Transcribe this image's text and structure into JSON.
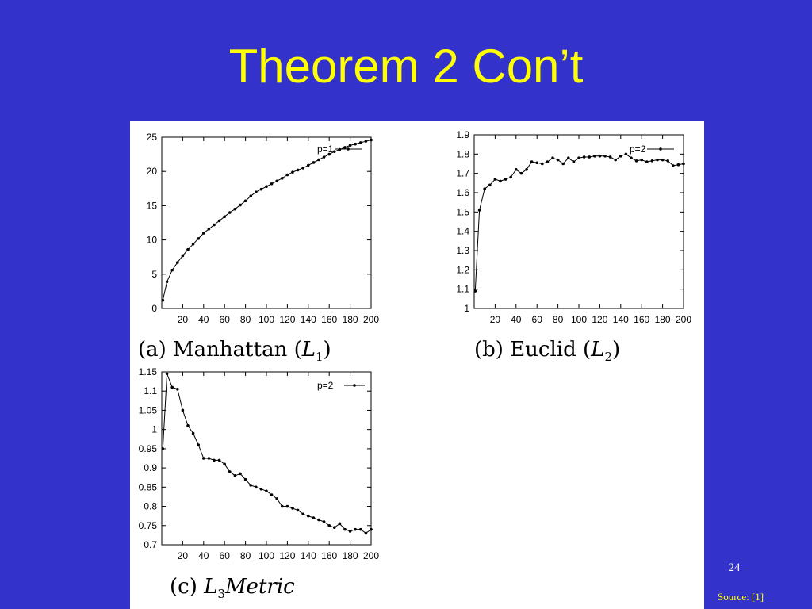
{
  "slide": {
    "title": "Theorem 2 Con’t",
    "page_number": "24",
    "source": "Source: [1]",
    "background": "#3333cc",
    "title_color": "#ffff00"
  },
  "chart_data": [
    {
      "type": "line",
      "caption": {
        "prefix": "(a) Manhattan (",
        "var": "L",
        "sub": "1",
        "suffix": ")"
      },
      "legend_label": "p=1",
      "legend_position": "top-right",
      "grid": false,
      "xlim": [
        0,
        200
      ],
      "ylim": [
        0,
        25
      ],
      "xticks": [
        20,
        40,
        60,
        80,
        100,
        120,
        140,
        160,
        180,
        200
      ],
      "yticks": [
        0,
        5,
        10,
        15,
        20,
        25
      ],
      "ytick_labels": [
        "0",
        "5",
        "10",
        "15",
        "20",
        "25"
      ],
      "series": [
        {
          "x": [
            1,
            5,
            10,
            15,
            20,
            25,
            30,
            35,
            40,
            45,
            50,
            55,
            60,
            65,
            70,
            75,
            80,
            85,
            90,
            95,
            100,
            105,
            110,
            115,
            120,
            125,
            130,
            135,
            140,
            145,
            150,
            155,
            160,
            165,
            170,
            175,
            180,
            185,
            190,
            195,
            200
          ],
          "y": [
            1.2,
            3.9,
            5.6,
            6.7,
            7.7,
            8.6,
            9.4,
            10.2,
            11.0,
            11.6,
            12.2,
            12.8,
            13.4,
            14.0,
            14.5,
            15.1,
            15.7,
            16.4,
            17.0,
            17.4,
            17.8,
            18.2,
            18.6,
            19.0,
            19.5,
            19.9,
            20.2,
            20.5,
            20.9,
            21.3,
            21.7,
            22.1,
            22.5,
            22.9,
            23.2,
            23.5,
            23.8,
            24.0,
            24.2,
            24.4,
            24.6
          ]
        }
      ]
    },
    {
      "type": "line",
      "caption": {
        "prefix": "(b) Euclid (",
        "var": "L",
        "sub": "2",
        "suffix": ")"
      },
      "legend_label": "p=2",
      "legend_position": "top-right",
      "grid": false,
      "xlim": [
        0,
        200
      ],
      "ylim": [
        1,
        1.9
      ],
      "xticks": [
        20,
        40,
        60,
        80,
        100,
        120,
        140,
        160,
        180,
        200
      ],
      "yticks": [
        1,
        1.1,
        1.2,
        1.3,
        1.4,
        1.5,
        1.6,
        1.7,
        1.8,
        1.9
      ],
      "ytick_labels": [
        "1",
        "1.1",
        "1.2",
        "1.3",
        "1.4",
        "1.5",
        "1.6",
        "1.7",
        "1.8",
        "1.9"
      ],
      "series": [
        {
          "x": [
            1,
            5,
            10,
            15,
            20,
            25,
            30,
            35,
            40,
            45,
            50,
            55,
            60,
            65,
            70,
            75,
            80,
            85,
            90,
            95,
            100,
            105,
            110,
            115,
            120,
            125,
            130,
            135,
            140,
            145,
            150,
            155,
            160,
            165,
            170,
            175,
            180,
            185,
            190,
            195,
            200
          ],
          "y": [
            1.09,
            1.51,
            1.62,
            1.64,
            1.67,
            1.66,
            1.67,
            1.68,
            1.72,
            1.7,
            1.72,
            1.76,
            1.755,
            1.75,
            1.76,
            1.78,
            1.77,
            1.75,
            1.78,
            1.76,
            1.78,
            1.785,
            1.785,
            1.79,
            1.79,
            1.79,
            1.785,
            1.77,
            1.79,
            1.8,
            1.78,
            1.765,
            1.77,
            1.76,
            1.765,
            1.77,
            1.77,
            1.765,
            1.74,
            1.745,
            1.75
          ]
        }
      ]
    },
    {
      "type": "line",
      "caption": {
        "prefix": "(c) ",
        "var": "L",
        "sub": "3",
        "suffix": "Metric"
      },
      "legend_label": "p=2",
      "legend_position": "top-right",
      "grid": false,
      "xlim": [
        0,
        200
      ],
      "ylim": [
        0.7,
        1.15
      ],
      "xticks": [
        20,
        40,
        60,
        80,
        100,
        120,
        140,
        160,
        180,
        200
      ],
      "yticks": [
        0.7,
        0.75,
        0.8,
        0.85,
        0.9,
        0.95,
        1,
        1.05,
        1.1,
        1.15
      ],
      "ytick_labels": [
        "0.7",
        "0.75",
        "0.8",
        "0.85",
        "0.9",
        "0.95",
        "1",
        "1.05",
        "1.1",
        "1.15"
      ],
      "series": [
        {
          "x": [
            1,
            5,
            10,
            15,
            20,
            25,
            30,
            35,
            40,
            45,
            50,
            55,
            60,
            65,
            70,
            75,
            80,
            85,
            90,
            95,
            100,
            105,
            110,
            115,
            120,
            125,
            130,
            135,
            140,
            145,
            150,
            155,
            160,
            165,
            170,
            175,
            180,
            185,
            190,
            195,
            200
          ],
          "y": [
            0.95,
            1.145,
            1.11,
            1.105,
            1.05,
            1.01,
            0.99,
            0.96,
            0.925,
            0.925,
            0.92,
            0.92,
            0.91,
            0.89,
            0.88,
            0.885,
            0.87,
            0.855,
            0.85,
            0.845,
            0.84,
            0.83,
            0.82,
            0.8,
            0.8,
            0.795,
            0.79,
            0.78,
            0.775,
            0.77,
            0.765,
            0.76,
            0.75,
            0.745,
            0.755,
            0.74,
            0.735,
            0.74,
            0.74,
            0.73,
            0.74
          ]
        }
      ]
    }
  ]
}
